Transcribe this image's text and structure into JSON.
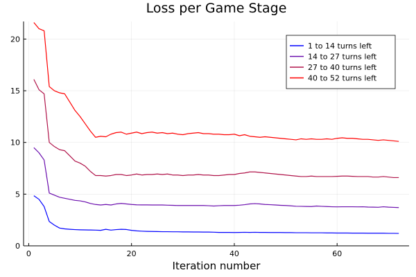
{
  "chart_data": {
    "type": "line",
    "title": "Loss per Game Stage",
    "xlabel": "Iteration number",
    "ylabel": "",
    "xlim": [
      -1,
      74
    ],
    "ylim": [
      0,
      21.7
    ],
    "xticks": [
      0,
      20,
      40,
      60
    ],
    "yticks": [
      0,
      5,
      10,
      15,
      20
    ],
    "grid": true,
    "legend_position": "top-right",
    "series": [
      {
        "name": "1 to 14 turns left",
        "color": "#0000ff",
        "x": [
          1,
          2,
          3,
          4,
          5,
          6,
          7,
          8,
          9,
          10,
          11,
          12,
          13,
          14,
          15,
          16,
          17,
          18,
          19,
          20,
          21,
          22,
          23,
          24,
          25,
          26,
          27,
          28,
          29,
          30,
          31,
          32,
          33,
          34,
          35,
          36,
          37,
          38,
          39,
          40,
          41,
          42,
          43,
          44,
          45,
          46,
          47,
          48,
          49,
          50,
          51,
          52,
          53,
          54,
          55,
          56,
          57,
          58,
          59,
          60,
          61,
          62,
          63,
          64,
          65,
          66,
          67,
          68,
          69,
          70,
          71,
          72
        ],
        "values": [
          4.85,
          4.5,
          3.8,
          2.35,
          2.0,
          1.72,
          1.64,
          1.6,
          1.57,
          1.55,
          1.54,
          1.53,
          1.52,
          1.5,
          1.6,
          1.52,
          1.57,
          1.6,
          1.58,
          1.5,
          1.45,
          1.42,
          1.4,
          1.39,
          1.38,
          1.37,
          1.37,
          1.36,
          1.36,
          1.35,
          1.35,
          1.34,
          1.34,
          1.33,
          1.33,
          1.32,
          1.3,
          1.3,
          1.3,
          1.29,
          1.3,
          1.31,
          1.3,
          1.31,
          1.3,
          1.3,
          1.29,
          1.29,
          1.29,
          1.28,
          1.28,
          1.27,
          1.27,
          1.27,
          1.26,
          1.26,
          1.26,
          1.25,
          1.25,
          1.24,
          1.24,
          1.24,
          1.23,
          1.23,
          1.23,
          1.22,
          1.22,
          1.22,
          1.22,
          1.21,
          1.21,
          1.2
        ]
      },
      {
        "name": "14 to 27 turns left",
        "color": "#6a0dad",
        "x": [
          1,
          2,
          3,
          4,
          5,
          6,
          7,
          8,
          9,
          10,
          11,
          12,
          13,
          14,
          15,
          16,
          17,
          18,
          19,
          20,
          21,
          22,
          23,
          24,
          25,
          26,
          27,
          28,
          29,
          30,
          31,
          32,
          33,
          34,
          35,
          36,
          37,
          38,
          39,
          40,
          41,
          42,
          43,
          44,
          45,
          46,
          47,
          48,
          49,
          50,
          51,
          52,
          53,
          54,
          55,
          56,
          57,
          58,
          59,
          60,
          61,
          62,
          63,
          64,
          65,
          66,
          67,
          68,
          69,
          70,
          71,
          72
        ],
        "values": [
          9.5,
          9.0,
          8.3,
          5.1,
          4.9,
          4.7,
          4.6,
          4.5,
          4.4,
          4.35,
          4.25,
          4.1,
          4.0,
          3.95,
          4.0,
          3.95,
          4.05,
          4.1,
          4.05,
          4.0,
          3.97,
          3.96,
          3.96,
          3.95,
          3.95,
          3.95,
          3.93,
          3.92,
          3.9,
          3.9,
          3.9,
          3.9,
          3.9,
          3.9,
          3.88,
          3.85,
          3.88,
          3.9,
          3.9,
          3.9,
          3.93,
          3.98,
          4.05,
          4.08,
          4.05,
          4.0,
          3.98,
          3.95,
          3.92,
          3.9,
          3.87,
          3.83,
          3.82,
          3.81,
          3.8,
          3.85,
          3.82,
          3.8,
          3.78,
          3.77,
          3.78,
          3.78,
          3.78,
          3.77,
          3.78,
          3.75,
          3.74,
          3.73,
          3.78,
          3.74,
          3.72,
          3.7
        ]
      },
      {
        "name": "27 to 40 turns left",
        "color": "#b0144a",
        "x": [
          1,
          2,
          3,
          4,
          5,
          6,
          7,
          8,
          9,
          10,
          11,
          12,
          13,
          14,
          15,
          16,
          17,
          18,
          19,
          20,
          21,
          22,
          23,
          24,
          25,
          26,
          27,
          28,
          29,
          30,
          31,
          32,
          33,
          34,
          35,
          36,
          37,
          38,
          39,
          40,
          41,
          42,
          43,
          44,
          45,
          46,
          47,
          48,
          49,
          50,
          51,
          52,
          53,
          54,
          55,
          56,
          57,
          58,
          59,
          60,
          61,
          62,
          63,
          64,
          65,
          66,
          67,
          68,
          69,
          70,
          71,
          72
        ],
        "values": [
          16.1,
          15.1,
          14.7,
          10.0,
          9.6,
          9.3,
          9.2,
          8.7,
          8.2,
          8.0,
          7.7,
          7.2,
          6.8,
          6.8,
          6.75,
          6.8,
          6.9,
          6.9,
          6.8,
          6.85,
          6.95,
          6.85,
          6.9,
          6.9,
          6.95,
          6.9,
          6.95,
          6.85,
          6.85,
          6.8,
          6.85,
          6.85,
          6.9,
          6.85,
          6.85,
          6.8,
          6.8,
          6.85,
          6.9,
          6.9,
          7.0,
          7.05,
          7.15,
          7.15,
          7.1,
          7.05,
          7.0,
          6.95,
          6.9,
          6.85,
          6.8,
          6.75,
          6.7,
          6.7,
          6.75,
          6.7,
          6.7,
          6.7,
          6.7,
          6.72,
          6.75,
          6.75,
          6.72,
          6.7,
          6.7,
          6.7,
          6.65,
          6.65,
          6.7,
          6.65,
          6.6,
          6.6
        ]
      },
      {
        "name": "40 to 52 turns left",
        "color": "#ff0000",
        "x": [
          1,
          2,
          3,
          4,
          5,
          6,
          7,
          8,
          9,
          10,
          11,
          12,
          13,
          14,
          15,
          16,
          17,
          18,
          19,
          20,
          21,
          22,
          23,
          24,
          25,
          26,
          27,
          28,
          29,
          30,
          31,
          32,
          33,
          34,
          35,
          36,
          37,
          38,
          39,
          40,
          41,
          42,
          43,
          44,
          45,
          46,
          47,
          48,
          49,
          50,
          51,
          52,
          53,
          54,
          55,
          56,
          57,
          58,
          59,
          60,
          61,
          62,
          63,
          64,
          65,
          66,
          67,
          68,
          69,
          70,
          71,
          72
        ],
        "values": [
          21.6,
          21.0,
          20.8,
          15.4,
          15.0,
          14.8,
          14.7,
          13.9,
          13.1,
          12.5,
          11.8,
          11.1,
          10.5,
          10.6,
          10.55,
          10.8,
          10.95,
          11.0,
          10.8,
          10.9,
          11.0,
          10.85,
          10.95,
          11.0,
          10.9,
          10.95,
          10.85,
          10.9,
          10.8,
          10.75,
          10.85,
          10.9,
          10.95,
          10.85,
          10.85,
          10.8,
          10.8,
          10.75,
          10.75,
          10.8,
          10.65,
          10.75,
          10.6,
          10.55,
          10.5,
          10.55,
          10.5,
          10.45,
          10.4,
          10.35,
          10.3,
          10.25,
          10.35,
          10.3,
          10.35,
          10.3,
          10.3,
          10.35,
          10.3,
          10.4,
          10.45,
          10.4,
          10.4,
          10.35,
          10.3,
          10.3,
          10.25,
          10.2,
          10.25,
          10.2,
          10.15,
          10.1
        ]
      }
    ]
  }
}
